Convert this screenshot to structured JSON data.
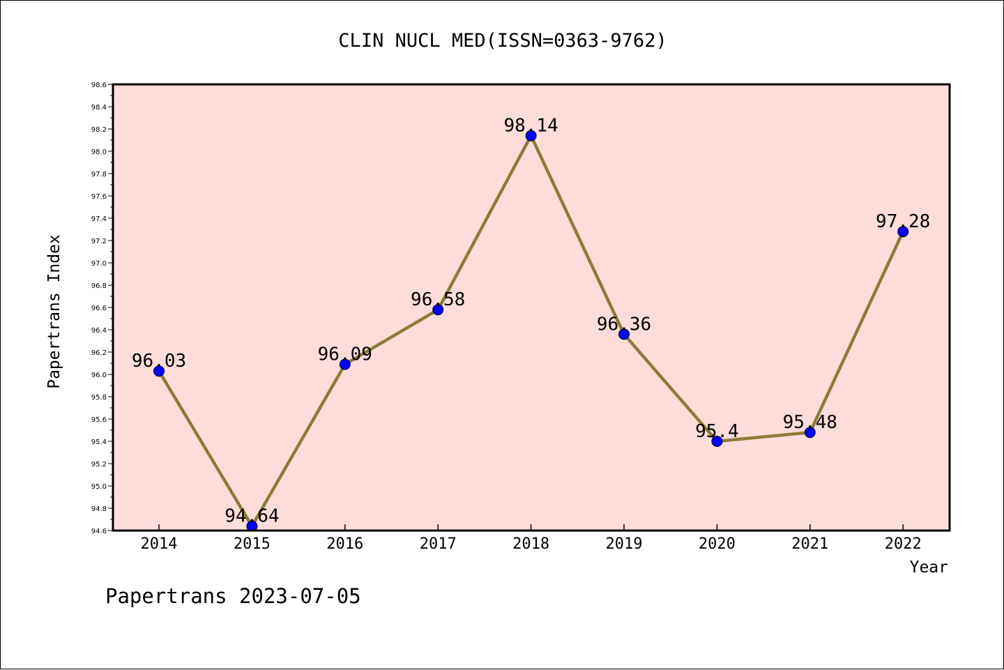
{
  "chart_data": {
    "type": "line",
    "title": "CLIN NUCL MED(ISSN=0363-9762)",
    "xlabel": "Year",
    "ylabel": "Papertrans Index",
    "categories": [
      "2014",
      "2015",
      "2016",
      "2017",
      "2018",
      "2019",
      "2020",
      "2021",
      "2022"
    ],
    "values": [
      96.03,
      94.64,
      96.09,
      96.58,
      98.14,
      96.36,
      95.4,
      95.48,
      97.28
    ],
    "data_labels": [
      "96.03",
      "94.64",
      "96.09",
      "96.58",
      "98.14",
      "96.36",
      "95.4",
      "95.48",
      "97.28"
    ],
    "ylim": [
      94.6,
      98.6
    ],
    "yticks": [
      "94.6",
      "94.8",
      "95.0",
      "95.2",
      "95.4",
      "95.6",
      "95.8",
      "96.0",
      "96.2",
      "96.4",
      "96.6",
      "96.8",
      "97.0",
      "97.2",
      "97.4",
      "97.6",
      "97.8",
      "98.0",
      "98.2",
      "98.4",
      "98.6"
    ],
    "grid": false,
    "colors": {
      "plot_background": "#FDDCDA",
      "line": "#8B7B3A",
      "marker": "#0000FF"
    }
  },
  "footer": "Papertrans 2023-07-05"
}
